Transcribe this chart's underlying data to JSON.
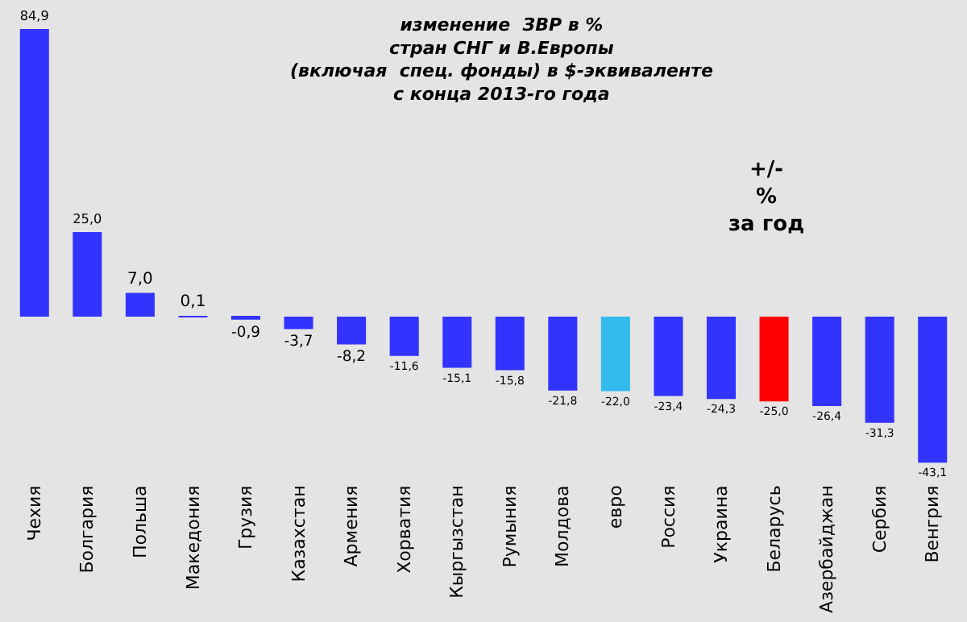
{
  "chart_data": {
    "type": "bar",
    "title": "изменение  ЗВР в %\nстран СНГ и В.Европы\n(включая  спец. фонды) в $-эквиваленте\nс конца 2013-го года",
    "annotations": [
      "+/-\n%\nза год"
    ],
    "categories": [
      "Чехия",
      "Болгария",
      "Польша",
      "Македония",
      "Грузия",
      "Казахстан",
      "Армения",
      "Хорватия",
      "Кыргызстан",
      "Румыния",
      "Молдова",
      "евро",
      "Россия",
      "Украина",
      "Беларусь",
      "Азербайджан",
      "Сербия",
      "Венгрия"
    ],
    "values": [
      84.9,
      25.0,
      7.0,
      0.1,
      -0.9,
      -3.7,
      -8.2,
      -11.6,
      -15.1,
      -15.8,
      -21.8,
      -22.0,
      -23.4,
      -24.3,
      -25.0,
      -26.4,
      -31.3,
      -43.1
    ],
    "value_labels": [
      "84,9",
      "25,0",
      "7,0",
      "0,1",
      "-0,9",
      "-3,7",
      "-8,2",
      "-11,6",
      "-15,1",
      "-15,8",
      "-21,8",
      "-22,0",
      "-23,4",
      "-24,3",
      "-25,0",
      "-26,4",
      "-31,3",
      "-43,1"
    ],
    "colors": [
      "#3333ff",
      "#3333ff",
      "#3333ff",
      "#3333ff",
      "#3333ff",
      "#3333ff",
      "#3333ff",
      "#3333ff",
      "#3333ff",
      "#3333ff",
      "#3333ff",
      "#33bbee",
      "#3333ff",
      "#3333ff",
      "#ff0000",
      "#3333ff",
      "#3333ff",
      "#3333ff"
    ]
  }
}
